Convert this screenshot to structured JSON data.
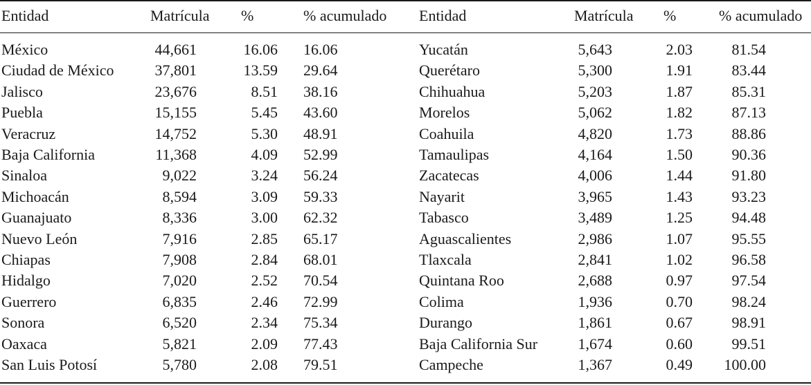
{
  "headers": {
    "entidad_left": "Entidad",
    "matricula_left": "Matrícula",
    "pct_left": "%",
    "acum_left": "% acumulado",
    "entidad_right": "Entidad",
    "matricula_right": "Matrícula",
    "pct_right": "%",
    "acum_right": "% acumulado"
  },
  "left_rows": [
    {
      "entidad": "México",
      "matricula": "44,661",
      "pct": "16.06",
      "acum": "16.06"
    },
    {
      "entidad": "Ciudad de México",
      "matricula": "37,801",
      "pct": "13.59",
      "acum": "29.64"
    },
    {
      "entidad": "Jalisco",
      "matricula": "23,676",
      "pct": "8.51",
      "acum": "38.16"
    },
    {
      "entidad": "Puebla",
      "matricula": "15,155",
      "pct": "5.45",
      "acum": "43.60"
    },
    {
      "entidad": "Veracruz",
      "matricula": "14,752",
      "pct": "5.30",
      "acum": "48.91"
    },
    {
      "entidad": "Baja California",
      "matricula": "11,368",
      "pct": "4.09",
      "acum": "52.99"
    },
    {
      "entidad": "Sinaloa",
      "matricula": "9,022",
      "pct": "3.24",
      "acum": "56.24"
    },
    {
      "entidad": "Michoacán",
      "matricula": "8,594",
      "pct": "3.09",
      "acum": "59.33"
    },
    {
      "entidad": "Guanajuato",
      "matricula": "8,336",
      "pct": "3.00",
      "acum": "62.32"
    },
    {
      "entidad": "Nuevo León",
      "matricula": "7,916",
      "pct": "2.85",
      "acum": "65.17"
    },
    {
      "entidad": "Chiapas",
      "matricula": "7,908",
      "pct": "2.84",
      "acum": "68.01"
    },
    {
      "entidad": "Hidalgo",
      "matricula": "7,020",
      "pct": "2.52",
      "acum": "70.54"
    },
    {
      "entidad": "Guerrero",
      "matricula": "6,835",
      "pct": "2.46",
      "acum": "72.99"
    },
    {
      "entidad": "Sonora",
      "matricula": "6,520",
      "pct": "2.34",
      "acum": "75.34"
    },
    {
      "entidad": "Oaxaca",
      "matricula": "5,821",
      "pct": "2.09",
      "acum": "77.43"
    },
    {
      "entidad": "San Luis Potosí",
      "matricula": "5,780",
      "pct": "2.08",
      "acum": "79.51"
    }
  ],
  "right_rows": [
    {
      "entidad": "Yucatán",
      "matricula": "5,643",
      "pct": "2.03",
      "acum": "81.54"
    },
    {
      "entidad": "Querétaro",
      "matricula": "5,300",
      "pct": "1.91",
      "acum": "83.44"
    },
    {
      "entidad": "Chihuahua",
      "matricula": "5,203",
      "pct": "1.87",
      "acum": "85.31"
    },
    {
      "entidad": "Morelos",
      "matricula": "5,062",
      "pct": "1.82",
      "acum": "87.13"
    },
    {
      "entidad": "Coahuila",
      "matricula": "4,820",
      "pct": "1.73",
      "acum": "88.86"
    },
    {
      "entidad": "Tamaulipas",
      "matricula": "4,164",
      "pct": "1.50",
      "acum": "90.36"
    },
    {
      "entidad": "Zacatecas",
      "matricula": "4,006",
      "pct": "1.44",
      "acum": "91.80"
    },
    {
      "entidad": "Nayarit",
      "matricula": "3,965",
      "pct": "1.43",
      "acum": "93.23"
    },
    {
      "entidad": "Tabasco",
      "matricula": "3,489",
      "pct": "1.25",
      "acum": "94.48"
    },
    {
      "entidad": "Aguascalientes",
      "matricula": "2,986",
      "pct": "1.07",
      "acum": "95.55"
    },
    {
      "entidad": "Tlaxcala",
      "matricula": "2,841",
      "pct": "1.02",
      "acum": "96.58"
    },
    {
      "entidad": "Quintana Roo",
      "matricula": "2,688",
      "pct": "0.97",
      "acum": "97.54"
    },
    {
      "entidad": "Colima",
      "matricula": "1,936",
      "pct": "0.70",
      "acum": "98.24"
    },
    {
      "entidad": "Durango",
      "matricula": "1,861",
      "pct": "0.67",
      "acum": "98.91"
    },
    {
      "entidad": "Baja California Sur",
      "matricula": "1,674",
      "pct": "0.60",
      "acum": "99.51"
    },
    {
      "entidad": "Campeche",
      "matricula": "1,367",
      "pct": "0.49",
      "acum": "100.00"
    }
  ]
}
